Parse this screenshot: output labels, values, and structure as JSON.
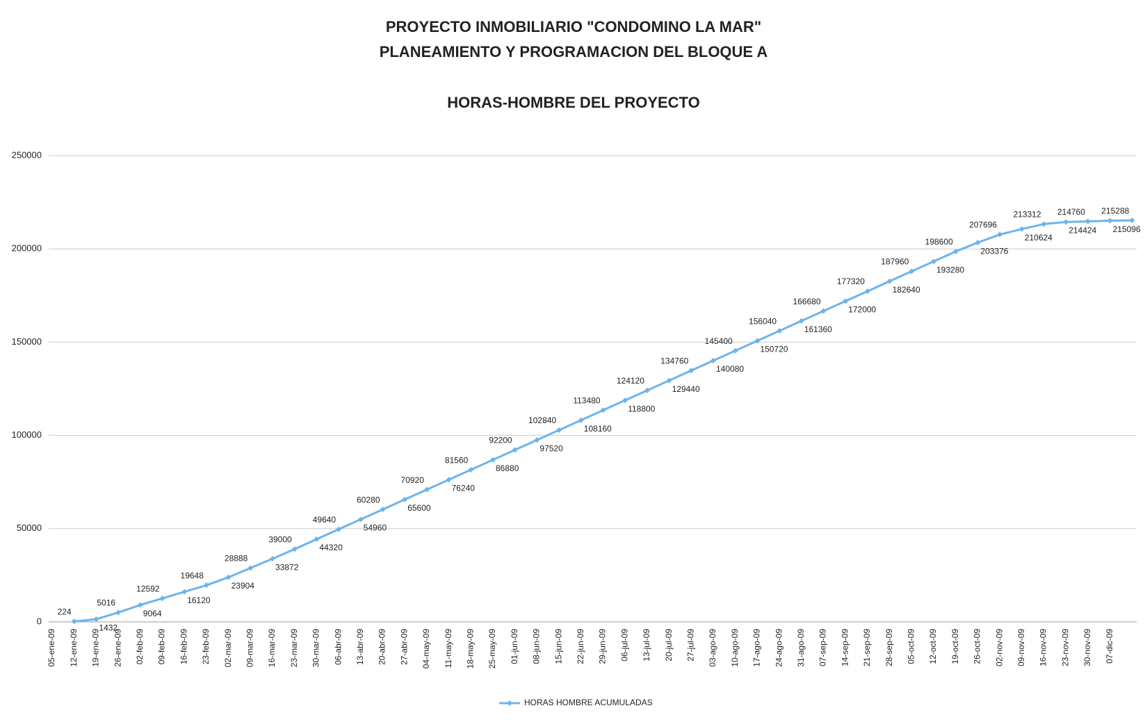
{
  "chart_data": {
    "type": "line",
    "title": [
      "PROYECTO INMOBILIARIO \"CONDOMINO LA MAR\"",
      "PLANEAMIENTO Y PROGRAMACION DEL BLOQUE A",
      "HORAS-HOMBRE DEL PROYECTO"
    ],
    "categories": [
      "05-ene-09",
      "12-ene-09",
      "19-ene-09",
      "26-ene-09",
      "02-feb-09",
      "09-feb-09",
      "16-feb-09",
      "23-feb-09",
      "02-mar-09",
      "09-mar-09",
      "16-mar-09",
      "23-mar-09",
      "30-mar-09",
      "06-abr-09",
      "13-abr-09",
      "20-abr-09",
      "27-abr-09",
      "04-may-09",
      "11-may-09",
      "18-may-09",
      "25-may-09",
      "01-jun-09",
      "08-jun-09",
      "15-jun-09",
      "22-jun-09",
      "29-jun-09",
      "06-jul-09",
      "13-jul-09",
      "20-jul-09",
      "27-jul-09",
      "03-ago-09",
      "10-ago-09",
      "17-ago-09",
      "24-ago-09",
      "31-ago-09",
      "07-sep-09",
      "14-sep-09",
      "21-sep-09",
      "28-sep-09",
      "05-oct-09",
      "12-oct-09",
      "19-oct-09",
      "26-oct-09",
      "02-nov-09",
      "09-nov-09",
      "16-nov-09",
      "23-nov-09",
      "30-nov-09",
      "07-dic-09",
      null
    ],
    "series": [
      {
        "name": "HORAS HOMBRE ACUMULADAS",
        "color": "#6cb4ec",
        "values": [
          null,
          224,
          1432,
          5016,
          9064,
          12592,
          16120,
          19648,
          23904,
          28888,
          33872,
          39000,
          44320,
          49640,
          54960,
          60280,
          65600,
          70920,
          76240,
          81560,
          86880,
          92200,
          97520,
          102840,
          108160,
          113480,
          118800,
          124120,
          129440,
          134760,
          140080,
          145400,
          150720,
          156040,
          161360,
          166680,
          172000,
          177320,
          182640,
          187960,
          193280,
          198600,
          203376,
          207696,
          210624,
          213312,
          214424,
          214760,
          215096,
          215288
        ]
      }
    ],
    "ylim": [
      0,
      250000
    ],
    "yticks": [
      0,
      50000,
      100000,
      150000,
      200000,
      250000
    ],
    "grid": true,
    "legend": "bottom"
  }
}
